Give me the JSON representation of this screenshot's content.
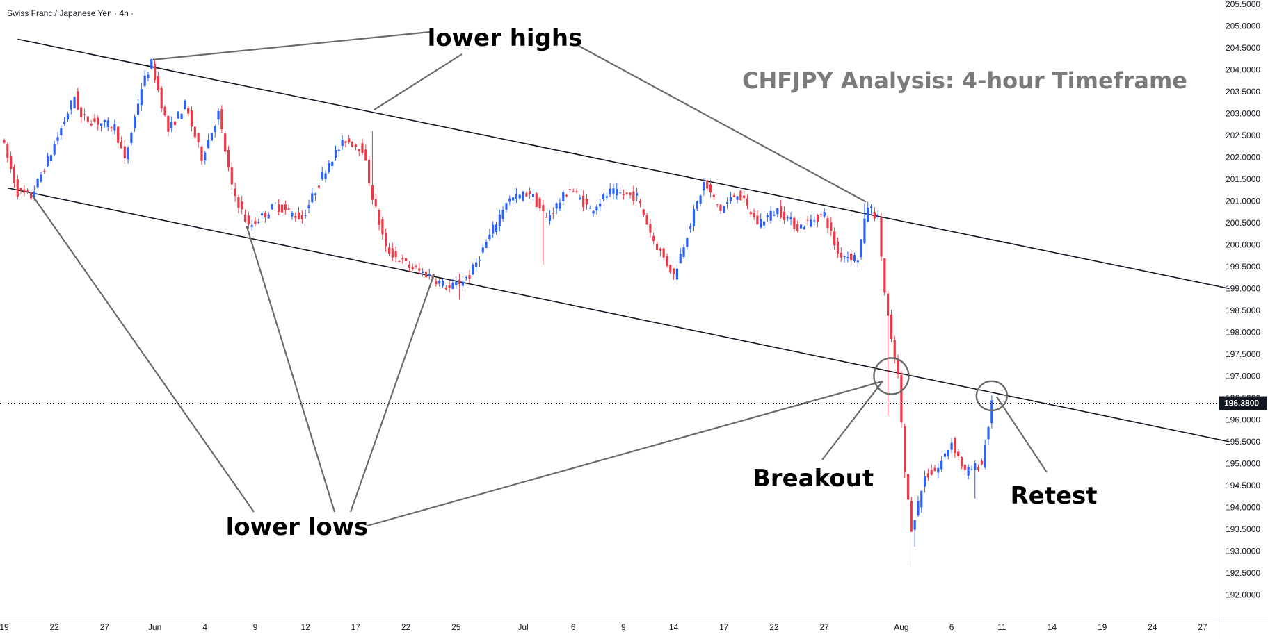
{
  "header": {
    "symbol": "Swiss Franc / Japanese Yen",
    "separator": "·",
    "interval": "4h",
    "separator_end": "·"
  },
  "title": "CHFJPY Analysis: 4-hour Timeframe",
  "annotations": {
    "lower_highs": "lower highs",
    "lower_lows": "lower lows",
    "breakout": "Breakout",
    "retest": "Retest"
  },
  "chart_data": {
    "type": "candlestick",
    "title": "CHFJPY Analysis: 4-hour Timeframe",
    "symbol": "Swiss Franc / Japanese Yen",
    "interval": "4h",
    "ylim": [
      191.7,
      205.6
    ],
    "y_ticks": [
      "205.5000",
      "205.0000",
      "204.5000",
      "204.0000",
      "203.5000",
      "203.0000",
      "202.5000",
      "202.0000",
      "201.5000",
      "201.0000",
      "200.5000",
      "200.0000",
      "199.5000",
      "199.0000",
      "198.5000",
      "198.0000",
      "197.5000",
      "197.0000",
      "196.5000",
      "196.0000",
      "195.5000",
      "195.0000",
      "194.5000",
      "194.0000",
      "193.5000",
      "193.0000",
      "192.5000",
      "192.0000"
    ],
    "x_ticks": [
      {
        "label": "19",
        "i": 0
      },
      {
        "label": "22",
        "i": 15
      },
      {
        "label": "27",
        "i": 30
      },
      {
        "label": "Jun",
        "i": 45
      },
      {
        "label": "4",
        "i": 60
      },
      {
        "label": "9",
        "i": 75
      },
      {
        "label": "12",
        "i": 90
      },
      {
        "label": "17",
        "i": 105
      },
      {
        "label": "22",
        "i": 120
      },
      {
        "label": "25",
        "i": 135
      },
      {
        "label": "Jul",
        "i": 155
      },
      {
        "label": "6",
        "i": 170
      },
      {
        "label": "9",
        "i": 185
      },
      {
        "label": "14",
        "i": 200
      },
      {
        "label": "17",
        "i": 215
      },
      {
        "label": "22",
        "i": 230
      },
      {
        "label": "27",
        "i": 245
      },
      {
        "label": "Aug",
        "i": 268
      },
      {
        "label": "6",
        "i": 283
      },
      {
        "label": "11",
        "i": 298
      },
      {
        "label": "14",
        "i": 313
      },
      {
        "label": "19",
        "i": 328
      },
      {
        "label": "24",
        "i": 343
      },
      {
        "label": "27",
        "i": 358
      }
    ],
    "current_price": 196.38,
    "current_price_label": "196.3800",
    "up_color": "#2962ff",
    "down_color": "#f23645",
    "trendlines": [
      {
        "name": "upper channel",
        "from": {
          "i": 4,
          "price": 204.7
        },
        "to": {
          "i": 366,
          "price": 199.0
        }
      },
      {
        "name": "lower channel",
        "from": {
          "i": 1,
          "price": 201.3
        },
        "to": {
          "i": 366,
          "price": 195.5
        }
      }
    ],
    "highlight_circles": [
      {
        "name": "breakout",
        "i": 265,
        "price": 197.0
      },
      {
        "name": "retest",
        "i": 295,
        "price": 196.55
      }
    ],
    "key_points": [
      {
        "name": "lower high 1",
        "i": 44,
        "price": 204.2
      },
      {
        "name": "lower high 2",
        "i": 110,
        "price": 203.05
      },
      {
        "name": "lower high 3",
        "i": 257,
        "price": 200.95
      },
      {
        "name": "lower low 1",
        "i": 8,
        "price": 201.1
      },
      {
        "name": "lower low 2",
        "i": 72,
        "price": 200.4
      },
      {
        "name": "lower low 3",
        "i": 128,
        "price": 199.3
      },
      {
        "name": "lower low 4",
        "i": 262,
        "price": 196.85
      },
      {
        "name": "breakout low",
        "i": 270,
        "price": 192.65
      },
      {
        "name": "retest high",
        "i": 296,
        "price": 196.5
      }
    ],
    "path": [
      [
        0,
        202.5
      ],
      [
        5,
        201.2
      ],
      [
        9,
        201.1
      ],
      [
        15,
        202.1
      ],
      [
        22,
        203.4
      ],
      [
        24,
        202.9
      ],
      [
        34,
        202.7
      ],
      [
        37,
        201.9
      ],
      [
        42,
        203.6
      ],
      [
        45,
        204.15
      ],
      [
        50,
        202.6
      ],
      [
        55,
        203.2
      ],
      [
        60,
        202.0
      ],
      [
        65,
        203.0
      ],
      [
        69,
        201.3
      ],
      [
        74,
        200.4
      ],
      [
        82,
        200.9
      ],
      [
        90,
        200.6
      ],
      [
        98,
        201.9
      ],
      [
        103,
        202.4
      ],
      [
        108,
        202.2
      ],
      [
        111,
        201.1
      ],
      [
        115,
        199.9
      ],
      [
        122,
        199.5
      ],
      [
        128,
        199.3
      ],
      [
        134,
        199.0
      ],
      [
        140,
        199.3
      ],
      [
        146,
        200.2
      ],
      [
        151,
        201.0
      ],
      [
        158,
        201.2
      ],
      [
        163,
        200.6
      ],
      [
        170,
        201.3
      ],
      [
        176,
        200.8
      ],
      [
        182,
        201.2
      ],
      [
        190,
        201.1
      ],
      [
        195,
        200.1
      ],
      [
        201,
        199.3
      ],
      [
        206,
        200.5
      ],
      [
        210,
        201.4
      ],
      [
        215,
        200.8
      ],
      [
        220,
        201.2
      ],
      [
        226,
        200.5
      ],
      [
        232,
        200.8
      ],
      [
        238,
        200.4
      ],
      [
        246,
        200.7
      ],
      [
        250,
        199.8
      ],
      [
        256,
        199.7
      ],
      [
        259,
        200.9
      ],
      [
        262,
        200.6
      ],
      [
        264,
        198.9
      ],
      [
        266,
        197.8
      ],
      [
        268,
        197.0
      ],
      [
        270,
        194.8
      ],
      [
        272,
        193.5
      ],
      [
        276,
        194.7
      ],
      [
        280,
        194.9
      ],
      [
        284,
        195.5
      ],
      [
        288,
        194.8
      ],
      [
        293,
        195.0
      ],
      [
        296,
        196.35
      ]
    ]
  }
}
